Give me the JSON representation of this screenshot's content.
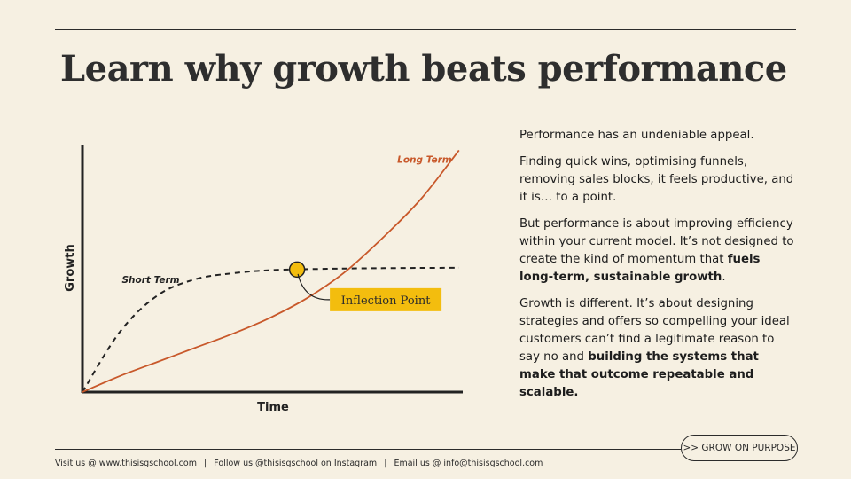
{
  "title": "Learn why growth beats performance",
  "chart_data": {
    "type": "line",
    "xlabel": "Time",
    "ylabel": "Growth",
    "x": [
      0,
      10,
      20,
      30,
      40,
      50,
      60,
      70,
      80,
      90,
      100
    ],
    "series": [
      {
        "name": "Long Term",
        "style": "solid",
        "color": "#c8582a",
        "values": [
          0,
          8,
          15,
          22,
          29,
          37,
          47,
          60,
          77,
          96,
          120
        ]
      },
      {
        "name": "Short Term",
        "style": "dashed",
        "color": "#222222",
        "values": [
          0,
          30,
          48,
          56,
          59,
          60.5,
          61,
          61.3,
          61.5,
          61.6,
          61.7
        ]
      }
    ],
    "annotation": {
      "label": "Inflection Point",
      "x": 57,
      "y": 60.8,
      "color": "#f3bd0e"
    },
    "xlim": [
      0,
      101
    ],
    "ylim": [
      0,
      125
    ],
    "grid": false
  },
  "paragraphs": [
    [
      {
        "text": "Performance has an undeniable appeal.",
        "bold": false
      }
    ],
    [
      {
        "text": "Finding quick wins, optimising funnels, removing sales blocks, it feels productive, and it is… to a point.",
        "bold": false
      }
    ],
    [
      {
        "text": "But performance is about improving efficiency within your current model. It’s not designed to create the kind of momentum that ",
        "bold": false
      },
      {
        "text": "fuels long-term, sustainable growth",
        "bold": true
      },
      {
        "text": ".",
        "bold": false
      }
    ],
    [
      {
        "text": "Growth is different. It’s about designing strategies and offers so compelling your ideal customers can’t find a legitimate reason to say no and ",
        "bold": false
      },
      {
        "text": "building the systems that make that outcome repeatable and scalable.",
        "bold": true
      }
    ]
  ],
  "cta": {
    "label": ">> GROW ON PURPOSE"
  },
  "footer": {
    "visit_prefix": "Visit us @",
    "website": "www.thisisgschool.com",
    "instagram": "Follow us @thisisgschool on Instagram",
    "email": "Email us @ info@thisisgschool.com",
    "separator": "|"
  }
}
